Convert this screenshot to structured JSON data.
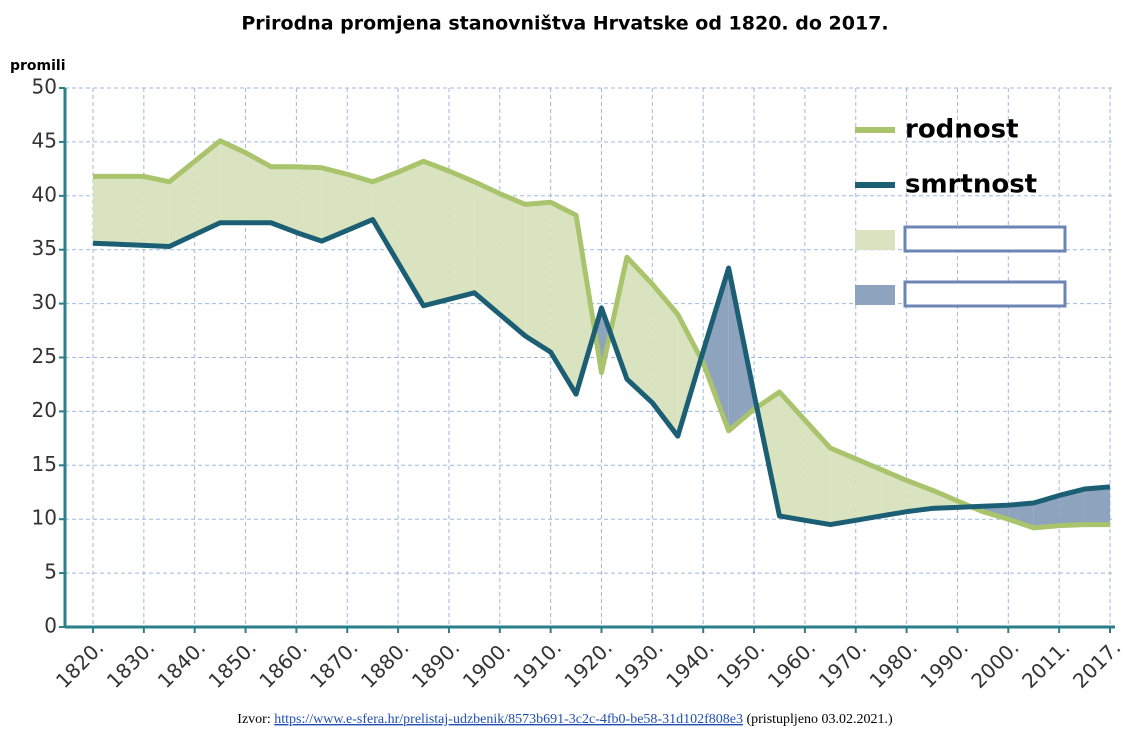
{
  "chart_data": {
    "type": "line",
    "title": "Prirodna promjena stanovništva Hrvatske od 1820. do 2017.",
    "y_label": "promili",
    "categories": [
      "1820.",
      null,
      "1830.",
      null,
      "1840.",
      null,
      "1850.",
      null,
      "1860.",
      null,
      "1870.",
      null,
      "1880.",
      null,
      "1890.",
      null,
      "1900.",
      null,
      "1910.",
      null,
      "1920.",
      null,
      "1930.",
      null,
      "1940.",
      null,
      "1950.",
      null,
      "1960.",
      null,
      "1970.",
      null,
      "1980.",
      null,
      "1990.",
      null,
      "2000.",
      null,
      "2011.",
      null,
      "2017."
    ],
    "series": [
      {
        "name": "rodnost",
        "color": "#a9c46c",
        "fill": "#d9e3bf",
        "values": [
          41.8,
          41.8,
          41.8,
          41.3,
          43.2,
          45.1,
          44,
          42.7,
          42.7,
          42.6,
          42,
          41.3,
          42.2,
          43.2,
          42.3,
          41.3,
          40.2,
          39.2,
          39.4,
          38.2,
          23.6,
          34.3,
          31.8,
          29,
          24.5,
          18.2,
          20.2,
          21.8,
          19.2,
          16.6,
          15.6,
          14.6,
          13.6,
          12.7,
          11.7,
          10.7,
          10,
          9.2,
          9.4,
          9.5,
          9.5
        ]
      },
      {
        "name": "smrtnost",
        "color": "#1c5f74",
        "fill": "#8ea3bd",
        "values": [
          35.6,
          35.5,
          35.4,
          35.3,
          36.4,
          37.5,
          37.5,
          37.5,
          36.6,
          35.8,
          36.8,
          37.8,
          33.8,
          29.8,
          30.4,
          31,
          29,
          27,
          25.5,
          21.6,
          29.6,
          23,
          20.8,
          17.7,
          25.6,
          33.3,
          21.6,
          10.3,
          9.9,
          9.5,
          9.9,
          10.3,
          10.7,
          11,
          11.1,
          11.2,
          11.3,
          11.5,
          12.2,
          12.8,
          13
        ]
      }
    ],
    "ylim": [
      0,
      50
    ],
    "yticks": [
      0,
      5,
      10,
      15,
      20,
      25,
      30,
      35,
      40,
      45,
      50
    ],
    "grid": true,
    "legend": "upper right"
  },
  "source": {
    "prefix": "Izvor:",
    "url": "https://www.e-sfera.hr/prelistaj-udzbenik/8573b691-3c2c-4fb0-be58-31d102f808e3",
    "suffix": "(pristupljeno 03.02.2021.)"
  }
}
